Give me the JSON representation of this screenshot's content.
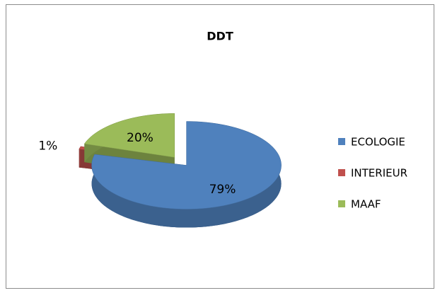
{
  "chart_data": {
    "type": "pie",
    "title": "DDT",
    "categories": [
      "ECOLOGIE",
      "INTERIEUR",
      "MAAF"
    ],
    "values": [
      79,
      1,
      20
    ],
    "value_labels": [
      "79%",
      "1%",
      "20%"
    ],
    "colors": [
      "#4f81bd",
      "#c0504d",
      "#9bbb59"
    ],
    "legend": "right"
  }
}
